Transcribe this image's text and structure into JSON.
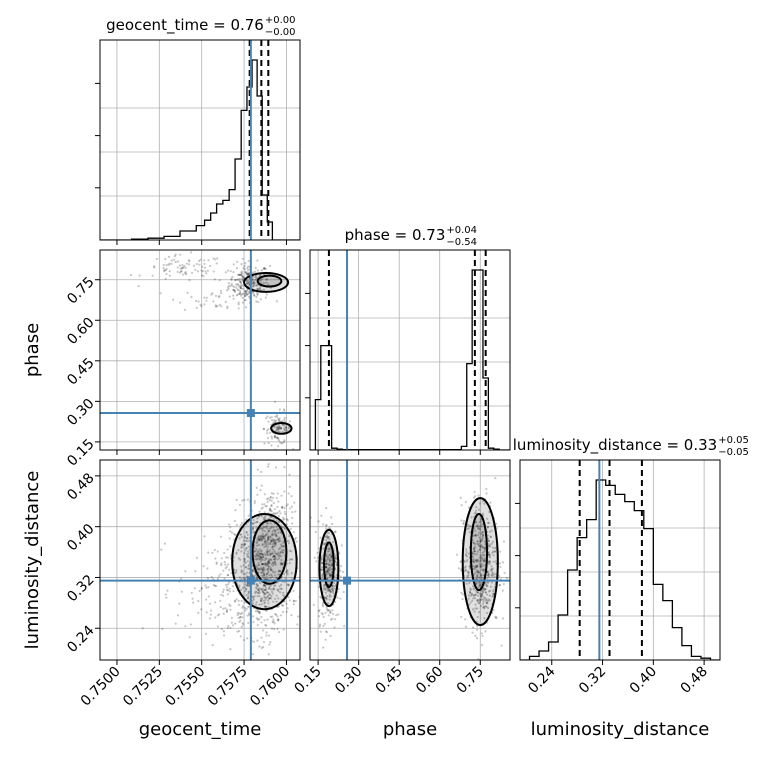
{
  "chart_data": {
    "type": "corner",
    "parameters": [
      "geocent_time",
      "phase",
      "luminosity_distance"
    ],
    "truth": {
      "geocent_time": 0.7579,
      "phase": 0.257,
      "luminosity_distance": 0.315
    },
    "truth_color": "#4682b4",
    "titles": [
      {
        "param": "geocent_time",
        "main": "geocent_time = 0.76",
        "plus": "+0.00",
        "minus": "−0.00"
      },
      {
        "param": "phase",
        "main": "phase = 0.73",
        "plus": "+0.04",
        "minus": "−0.54"
      },
      {
        "param": "luminosity_distance",
        "main": "luminosity_distance = 0.33",
        "plus": "+0.05",
        "minus": "−0.05"
      }
    ],
    "axes": {
      "geocent_time": {
        "range": [
          0.749,
          0.7608
        ],
        "ticks": [
          0.75,
          0.7525,
          0.755,
          0.7575,
          0.76
        ],
        "ticklabels": [
          "0.7500",
          "0.7525",
          "0.7550",
          "0.7575",
          "0.7600"
        ]
      },
      "phase": {
        "range": [
          0.12,
          0.86
        ],
        "ticks": [
          0.15,
          0.3,
          0.45,
          0.6,
          0.75
        ],
        "ticklabels": [
          "0.15",
          "0.30",
          "0.45",
          "0.60",
          "0.75"
        ]
      },
      "luminosity_distance": {
        "range": [
          0.19,
          0.505
        ],
        "ticks": [
          0.24,
          0.32,
          0.4,
          0.48
        ],
        "ticklabels": [
          "0.24",
          "0.32",
          "0.40",
          "0.48"
        ]
      }
    },
    "histograms": {
      "geocent_time": {
        "edges": [
          0.749,
          0.75086,
          0.75183,
          0.75278,
          0.75372,
          0.75468,
          0.75517,
          0.75553,
          0.75588,
          0.75625,
          0.75662,
          0.75697,
          0.75733,
          0.75767,
          0.75797,
          0.75827,
          0.75857,
          0.75887,
          0.75917,
          0.7608
        ],
        "counts": [
          0,
          0.005,
          0.01,
          0.02,
          0.05,
          0.08,
          0.11,
          0.15,
          0.2,
          0.22,
          0.28,
          0.45,
          0.72,
          0.85,
          1.0,
          0.8,
          0.25,
          0.1,
          0
        ],
        "quantiles": [
          0.75783,
          0.75852,
          0.75893
        ]
      },
      "phase": {
        "edges": [
          0.12,
          0.14,
          0.16,
          0.18,
          0.2,
          0.22,
          0.24,
          0.26,
          0.28,
          0.3,
          0.32,
          0.34,
          0.36,
          0.38,
          0.4,
          0.42,
          0.44,
          0.46,
          0.48,
          0.5,
          0.52,
          0.54,
          0.56,
          0.58,
          0.6,
          0.62,
          0.64,
          0.66,
          0.68,
          0.7,
          0.72,
          0.74,
          0.76,
          0.78,
          0.8,
          0.82,
          0.84,
          0.86
        ],
        "counts": [
          0,
          0.28,
          0.58,
          0.58,
          0.01,
          0.005,
          0.002,
          0.002,
          0.002,
          0.002,
          0.002,
          0.002,
          0.002,
          0.002,
          0.002,
          0.002,
          0.002,
          0.002,
          0.002,
          0.002,
          0.002,
          0.002,
          0.002,
          0.002,
          0.002,
          0.002,
          0.002,
          0.002,
          0.02,
          0.48,
          1.0,
          1.0,
          0.4,
          0.01,
          0.005,
          0,
          0
        ],
        "quantiles": [
          0.19,
          0.73,
          0.77
        ]
      },
      "luminosity_distance": {
        "edges": [
          0.19,
          0.205,
          0.22,
          0.235,
          0.25,
          0.265,
          0.28,
          0.295,
          0.31,
          0.325,
          0.34,
          0.355,
          0.37,
          0.385,
          0.4,
          0.415,
          0.43,
          0.445,
          0.46,
          0.475,
          0.49,
          0.505
        ],
        "counts": [
          0,
          0.02,
          0.05,
          0.1,
          0.25,
          0.5,
          0.68,
          0.78,
          1.0,
          0.97,
          0.92,
          0.88,
          0.83,
          0.73,
          0.42,
          0.33,
          0.18,
          0.08,
          0.02,
          0.01,
          0
        ],
        "quantiles": [
          0.284,
          0.331,
          0.382
        ]
      }
    },
    "scatter_2d": {
      "phase_vs_geocent_time": [
        {
          "x0": 0.7578,
          "y0": 0.74,
          "sx": 0.0006,
          "sy": 0.035,
          "n": 260
        },
        {
          "x0": 0.7595,
          "y0": 0.2,
          "sx": 0.0004,
          "sy": 0.03,
          "n": 120
        },
        {
          "x0": 0.754,
          "y0": 0.79,
          "sx": 0.0012,
          "sy": 0.025,
          "n": 80
        },
        {
          "x0": 0.756,
          "y0": 0.68,
          "sx": 0.0012,
          "sy": 0.02,
          "n": 40
        }
      ],
      "luminosity_distance_vs_geocent_time": [
        {
          "x0": 0.7585,
          "y0": 0.33,
          "sx": 0.0009,
          "sy": 0.05,
          "n": 700
        },
        {
          "x0": 0.7592,
          "y0": 0.39,
          "sx": 0.0006,
          "sy": 0.04,
          "n": 250
        },
        {
          "x0": 0.7565,
          "y0": 0.3,
          "sx": 0.0015,
          "sy": 0.04,
          "n": 200
        }
      ],
      "luminosity_distance_vs_phase": [
        {
          "x0": 0.19,
          "y0": 0.33,
          "sx": 0.02,
          "sy": 0.04,
          "n": 350
        },
        {
          "x0": 0.75,
          "y0": 0.34,
          "sx": 0.035,
          "sy": 0.05,
          "n": 550
        }
      ]
    },
    "contours": {
      "phase_vs_geocent_time": [
        {
          "x0": 0.7588,
          "y0": 0.74,
          "rx": 0.0013,
          "ry": 0.035
        },
        {
          "x0": 0.759,
          "y0": 0.745,
          "rx": 0.0007,
          "ry": 0.02
        },
        {
          "x0": 0.7597,
          "y0": 0.2,
          "rx": 0.0006,
          "ry": 0.02
        }
      ],
      "luminosity_distance_vs_geocent_time": [
        {
          "x0": 0.7587,
          "y0": 0.345,
          "rx": 0.0019,
          "ry": 0.075
        },
        {
          "x0": 0.759,
          "y0": 0.36,
          "rx": 0.001,
          "ry": 0.05
        }
      ],
      "luminosity_distance_vs_phase": [
        {
          "x0": 0.19,
          "y0": 0.335,
          "rx": 0.035,
          "ry": 0.06
        },
        {
          "x0": 0.19,
          "y0": 0.34,
          "rx": 0.018,
          "ry": 0.035
        },
        {
          "x0": 0.75,
          "y0": 0.345,
          "rx": 0.065,
          "ry": 0.1
        },
        {
          "x0": 0.745,
          "y0": 0.36,
          "rx": 0.03,
          "ry": 0.06
        }
      ]
    },
    "grid": true
  }
}
